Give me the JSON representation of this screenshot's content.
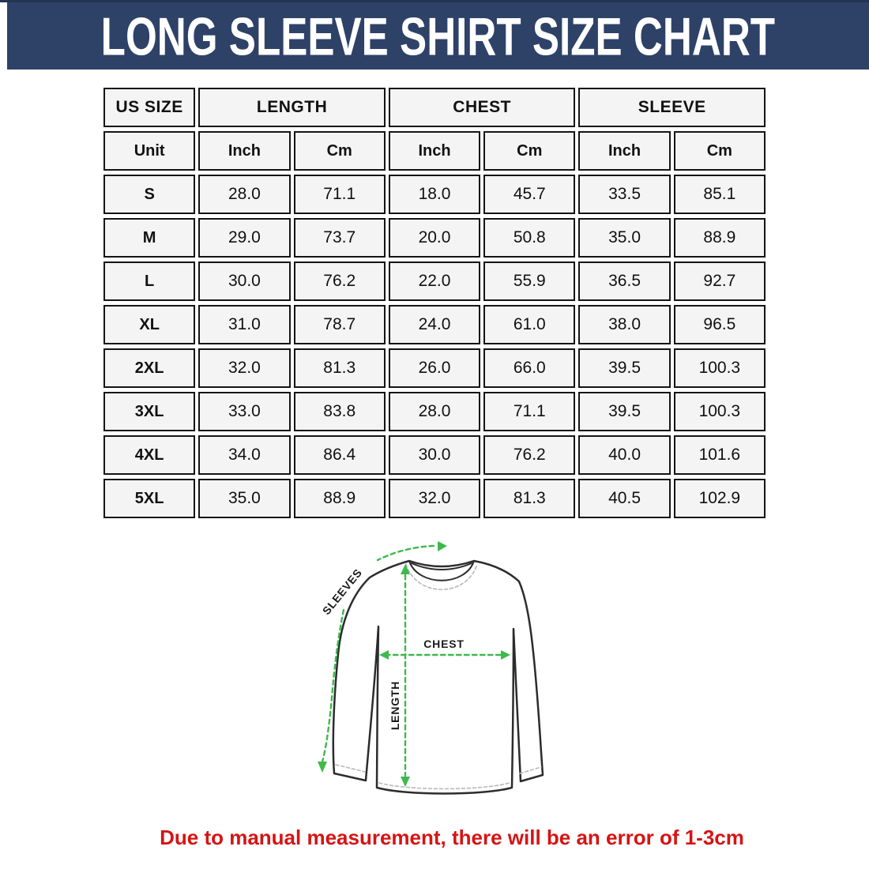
{
  "banner": {
    "title": "LONG SLEEVE SHIRT SIZE CHART",
    "bg_color": "#2e4268",
    "top_stripe_color": "#243453",
    "text_color": "#ffffff"
  },
  "size_table": {
    "group_headers": [
      "US SIZE",
      "LENGTH",
      "CHEST",
      "SLEEVE"
    ],
    "unit_row": [
      "Unit",
      "Inch",
      "Cm",
      "Inch",
      "Cm",
      "Inch",
      "Cm"
    ],
    "rows": [
      {
        "size": "S",
        "values": [
          "28.0",
          "71.1",
          "18.0",
          "45.7",
          "33.5",
          "85.1"
        ]
      },
      {
        "size": "M",
        "values": [
          "29.0",
          "73.7",
          "20.0",
          "50.8",
          "35.0",
          "88.9"
        ]
      },
      {
        "size": "L",
        "values": [
          "30.0",
          "76.2",
          "22.0",
          "55.9",
          "36.5",
          "92.7"
        ]
      },
      {
        "size": "XL",
        "values": [
          "31.0",
          "78.7",
          "24.0",
          "61.0",
          "38.0",
          "96.5"
        ]
      },
      {
        "size": "2XL",
        "values": [
          "32.0",
          "81.3",
          "26.0",
          "66.0",
          "39.5",
          "100.3"
        ]
      },
      {
        "size": "3XL",
        "values": [
          "33.0",
          "83.8",
          "28.0",
          "71.1",
          "39.5",
          "100.3"
        ]
      },
      {
        "size": "4XL",
        "values": [
          "34.0",
          "86.4",
          "30.0",
          "76.2",
          "40.0",
          "101.6"
        ]
      },
      {
        "size": "5XL",
        "values": [
          "35.0",
          "88.9",
          "32.0",
          "81.3",
          "40.5",
          "102.9"
        ]
      }
    ],
    "cell_bg_color": "#f4f4f4",
    "cell_border_color": "#141414"
  },
  "diagram": {
    "sleeves_label": "SLEEVES",
    "chest_label": "CHEST",
    "length_label": "LENGTH",
    "arrow_color": "#3eb94d",
    "outline_color": "#2c2c2c"
  },
  "footnote": {
    "text": "Due to manual measurement, there will be an error of 1-3cm",
    "color": "#d61414"
  }
}
